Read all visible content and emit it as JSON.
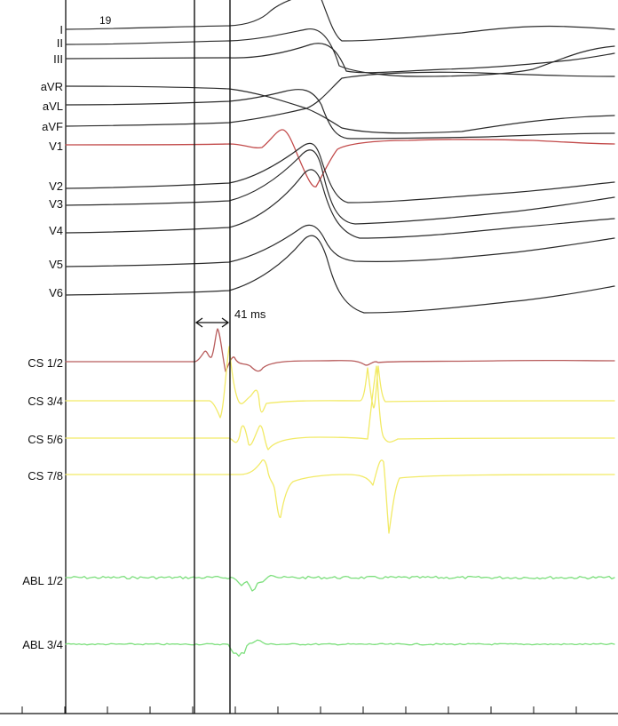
{
  "header": {
    "beat_number": "19"
  },
  "measurement": {
    "label": "41 ms"
  },
  "colors": {
    "surface_ecg": "#2b2b2b",
    "v1": "#c24a4a",
    "cs12": "#b85c5c",
    "cs_distal": "#f2ea66",
    "abl": "#7cdf7c",
    "caliper": "#111111"
  },
  "leads": {
    "surface": [
      "I",
      "II",
      "III",
      "aVR",
      "aVL",
      "aVF",
      "V1",
      "V2",
      "V3",
      "V4",
      "V5",
      "V6"
    ],
    "intracardiac": [
      "CS 1/2",
      "CS 3/4",
      "CS 5/6",
      "CS 7/8",
      "ABL 1/2",
      "ABL 3/4"
    ]
  }
}
